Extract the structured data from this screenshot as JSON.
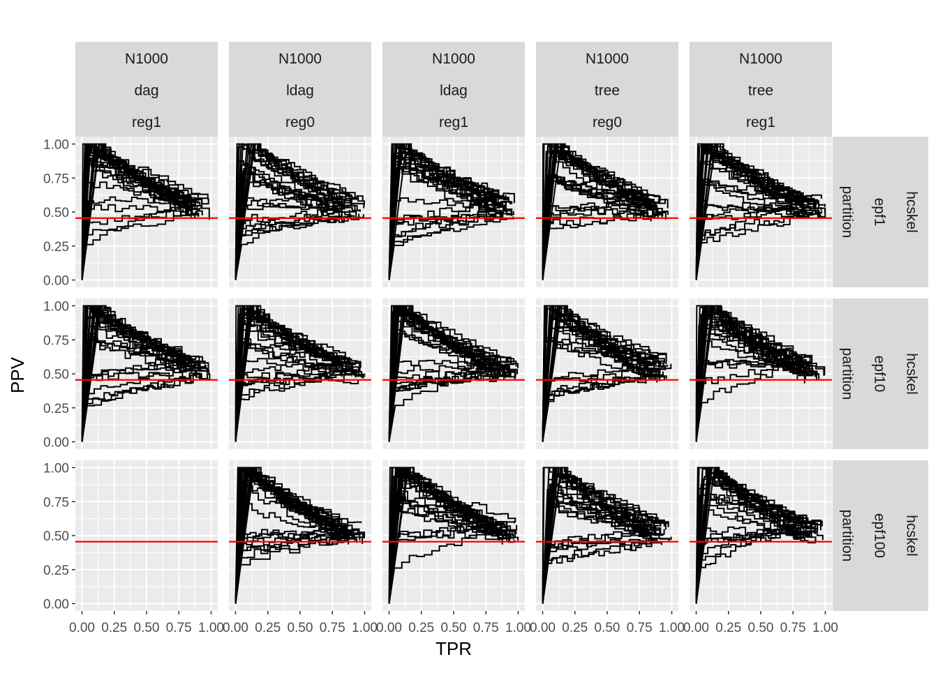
{
  "chart_data": {
    "type": "line",
    "title": "",
    "xlabel": "TPR",
    "ylabel": "PPV",
    "xlim": [
      0,
      1
    ],
    "ylim": [
      0,
      1
    ],
    "x_ticks": [
      "0.00",
      "0.25",
      "0.50",
      "0.75",
      "1.00"
    ],
    "y_ticks": [
      "0.00",
      "0.25",
      "0.50",
      "0.75",
      "1.00"
    ],
    "grid": true,
    "legend": "none",
    "colors": {
      "panel_bg": "#ebebeb",
      "grid": "#ffffff",
      "strip_bg": "#d9d9d9",
      "line": "#000000",
      "reference": "#ff0000"
    },
    "reference_line": {
      "y": 0.455,
      "color": "#ff0000"
    },
    "col_facets": [
      {
        "labels": [
          "N1000",
          "dag",
          "reg1"
        ]
      },
      {
        "labels": [
          "N1000",
          "ldag",
          "reg0"
        ]
      },
      {
        "labels": [
          "N1000",
          "ldag",
          "reg1"
        ]
      },
      {
        "labels": [
          "N1000",
          "tree",
          "reg0"
        ]
      },
      {
        "labels": [
          "N1000",
          "tree",
          "reg1"
        ]
      }
    ],
    "row_facets": [
      {
        "labels": [
          "hcskel",
          "epf1",
          "partition"
        ]
      },
      {
        "labels": [
          "hcskel",
          "epf10",
          "partition"
        ]
      },
      {
        "labels": [
          "hcskel",
          "epf100",
          "partition"
        ]
      }
    ],
    "curves_per_panel": 30,
    "empty_panels": [
      [
        2,
        0
      ]
    ],
    "curve_shape": {
      "start": [
        0.0,
        0.0
      ],
      "end_tpr_range": [
        0.78,
        1.0
      ],
      "end_ppv_range": [
        0.45,
        0.6
      ],
      "max_ppv": 1.0
    }
  }
}
